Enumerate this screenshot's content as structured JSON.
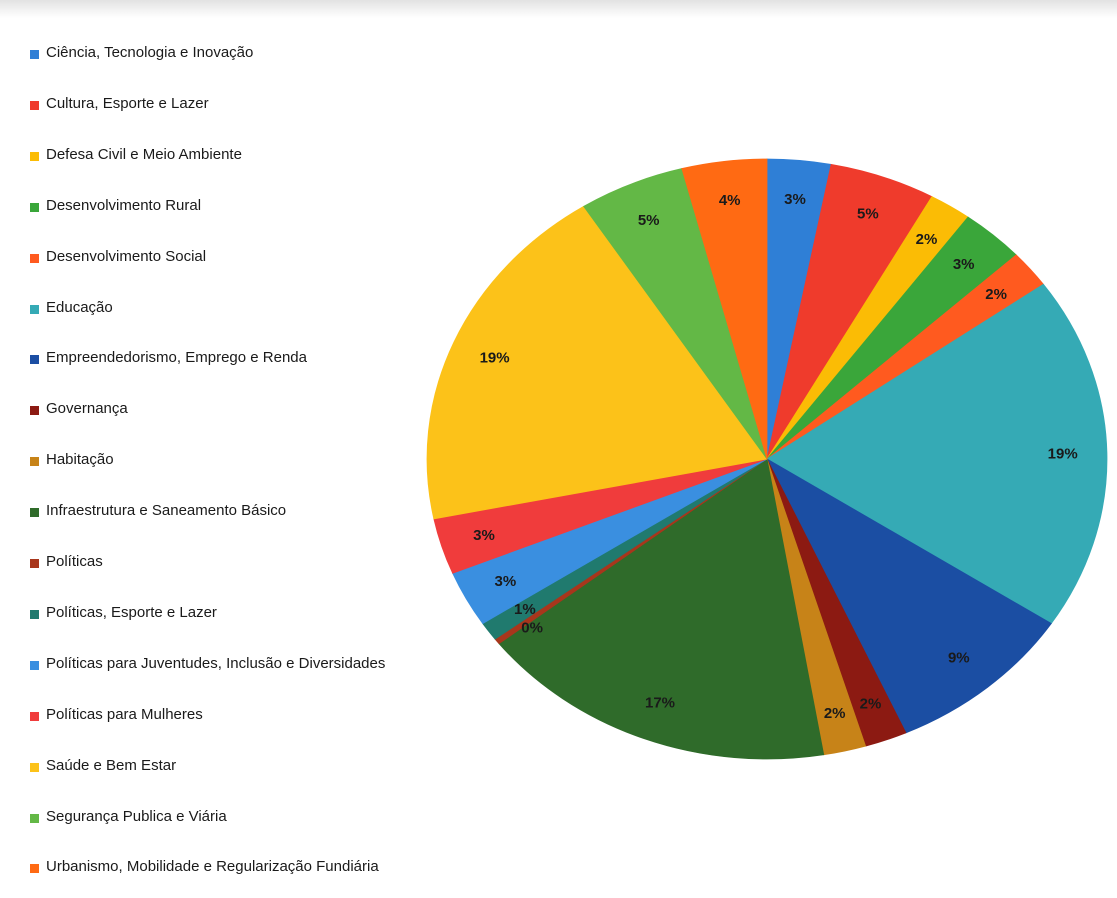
{
  "chart_data": {
    "type": "pie",
    "legend_position": "left",
    "slices": [
      {
        "label": "Ciência, Tecnologia e Inovação",
        "value": 3,
        "value_label": "3%",
        "color": "#2f7fd6"
      },
      {
        "label": "Cultura, Esporte e Lazer",
        "value": 5,
        "value_label": "5%",
        "color": "#ef3b2c"
      },
      {
        "label": "Defesa Civil e Meio Ambiente",
        "value": 2,
        "value_label": "2%",
        "color": "#fbbc05"
      },
      {
        "label": "Desenvolvimento Rural",
        "value": 3,
        "value_label": "3%",
        "color": "#3aa63a"
      },
      {
        "label": "Desenvolvimento Social",
        "value": 2,
        "value_label": "2%",
        "color": "#ff5a1f"
      },
      {
        "label": "Educação",
        "value": 19,
        "value_label": "19%",
        "color": "#35aab5"
      },
      {
        "label": "Empreendedorismo, Emprego e Renda",
        "value": 9,
        "value_label": "9%",
        "color": "#1b4ea3"
      },
      {
        "label": "Governança",
        "value": 2,
        "value_label": "2%",
        "color": "#8c1a12"
      },
      {
        "label": "Habitação",
        "value": 2,
        "value_label": "2%",
        "color": "#c78318"
      },
      {
        "label": "Infraestrutura e Saneamento Básico",
        "value": 17,
        "value_label": "17%",
        "color": "#2f6b2a"
      },
      {
        "label": "Políticas",
        "value": 0.3,
        "value_label": "0%",
        "color": "#a8361c"
      },
      {
        "label": "Políticas, Esporte e Lazer",
        "value": 1,
        "value_label": "1%",
        "color": "#207a6e"
      },
      {
        "label": "Políticas para Juventudes, Inclusão e Diversidades",
        "value": 3,
        "value_label": "3%",
        "color": "#3a8fe0"
      },
      {
        "label": "Políticas para Mulheres",
        "value": 3,
        "value_label": "3%",
        "color": "#f03c3c"
      },
      {
        "label": "Saúde e Bem Estar",
        "value": 19,
        "value_label": "19%",
        "color": "#fcc219"
      },
      {
        "label": "Segurança Publica e Viária",
        "value": 5,
        "value_label": "5%",
        "color": "#63b846"
      },
      {
        "label": "Urbanismo, Mobilidade e Regularização Fundiária",
        "value": 4,
        "value_label": "4%",
        "color": "#ff6a13"
      }
    ]
  }
}
